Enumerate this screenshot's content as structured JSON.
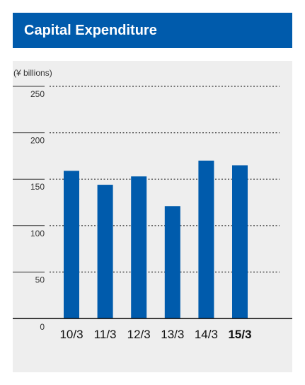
{
  "title": "Capital Expenditure",
  "chart_data": {
    "type": "bar",
    "unit_label": "(¥ billions)",
    "categories": [
      "10/3",
      "11/3",
      "12/3",
      "13/3",
      "14/3",
      "15/3"
    ],
    "highlighted_category": "15/3",
    "values": [
      159,
      144,
      153,
      121,
      170,
      165
    ],
    "ylim": [
      0,
      250
    ],
    "yticks": [
      0,
      50,
      100,
      150,
      200,
      250
    ],
    "grid": true,
    "grid_style": "dotted",
    "bar_color": "#005bac"
  },
  "colors": {
    "header_bg": "#005bac",
    "panel_bg": "#eeeeee",
    "axis": "#000000"
  }
}
